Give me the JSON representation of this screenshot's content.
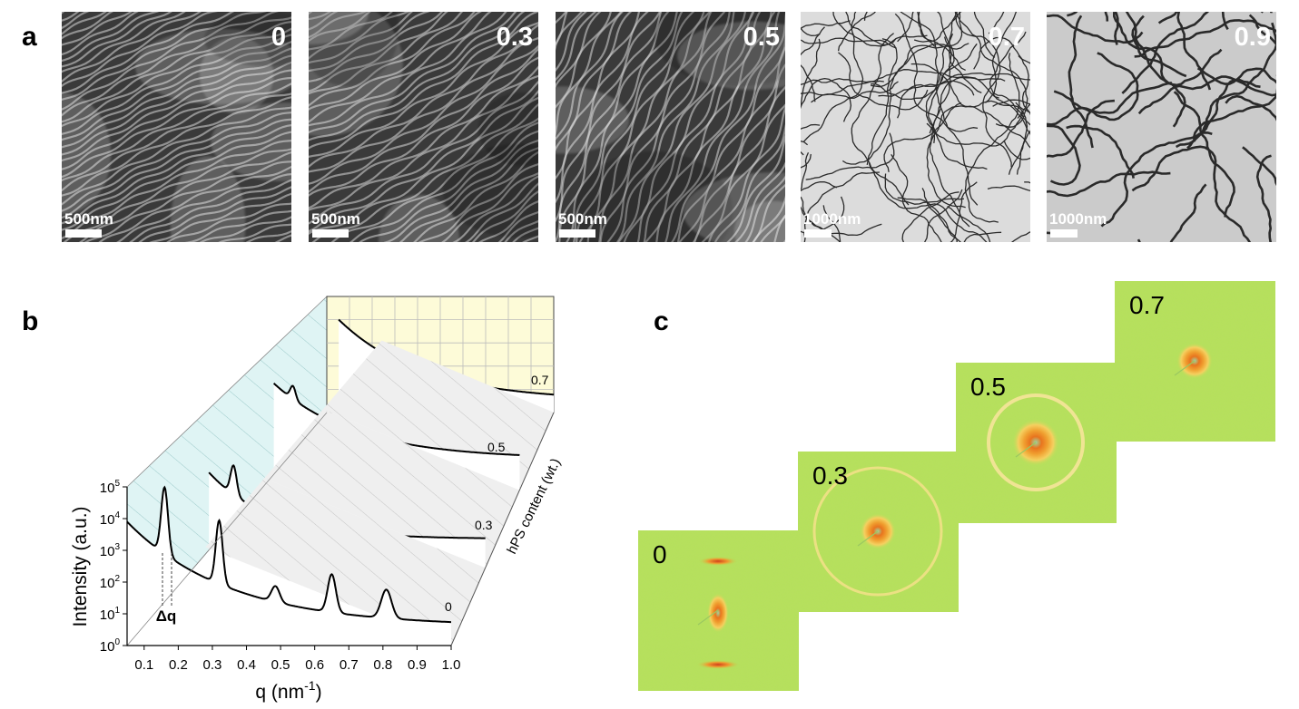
{
  "panel_a": {
    "label": "a",
    "images": [
      {
        "label": "0",
        "scale_bar": "500nm"
      },
      {
        "label": "0.3",
        "scale_bar": "500nm"
      },
      {
        "label": "0.5",
        "scale_bar": "500nm"
      },
      {
        "label": "0.7",
        "scale_bar": "1000nm"
      },
      {
        "label": "0.9",
        "scale_bar": "1000nm"
      }
    ]
  },
  "panel_b": {
    "label": "b",
    "y_axis_label": "Intensity (a.u.)",
    "x_axis_label": "q (nm",
    "x_axis_label_exponent": "-1",
    "x_axis_label_end": ")",
    "depth_axis_label": "hPS content (wt.)",
    "delta_label": "Δq",
    "yticks": [
      {
        "base": "10",
        "exponent": "0"
      },
      {
        "base": "10",
        "exponent": "1"
      },
      {
        "base": "10",
        "exponent": "2"
      },
      {
        "base": "10",
        "exponent": "3"
      },
      {
        "base": "10",
        "exponent": "4"
      },
      {
        "base": "10",
        "exponent": "5"
      }
    ],
    "xticks": [
      "0.1",
      "0.2",
      "0.3",
      "0.4",
      "0.5",
      "0.6",
      "0.7",
      "0.8",
      "0.9",
      "1.0"
    ],
    "series_labels": [
      "0",
      "0.3",
      "0.5",
      "0.7"
    ]
  },
  "panel_c": {
    "label": "c",
    "patterns": [
      "0",
      "0.3",
      "0.5",
      "0.7"
    ]
  }
}
